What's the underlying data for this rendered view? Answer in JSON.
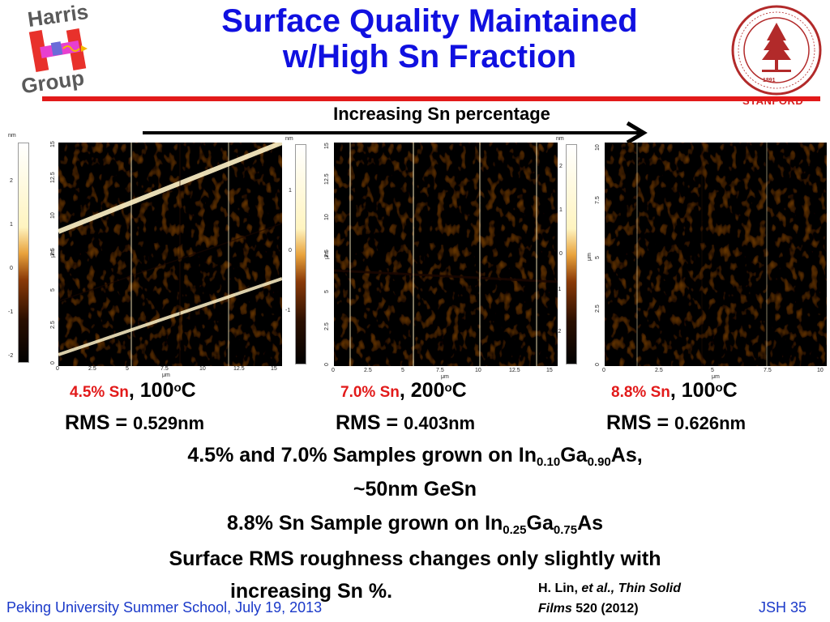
{
  "title": {
    "line1": "Surface Quality Maintained",
    "line2": "w/High Sn Fraction"
  },
  "logo": {
    "top": "Harris",
    "bottom": "Group"
  },
  "stanford": {
    "label": "STANFORD",
    "seal_ring_text": "LELAND STANFORD JUNIOR UNIVERSITY",
    "seal_year": "1891"
  },
  "arrow": {
    "label": "Increasing Sn percentage"
  },
  "panels": [
    {
      "colorbar_unit": "nm",
      "colorbar_ticks": [
        "2",
        "1",
        "0",
        "-1",
        "-2"
      ],
      "y_ticks": [
        "15",
        "12.5",
        "10",
        "7.5",
        "5",
        "2.5",
        "0"
      ],
      "x_ticks": [
        "0",
        "2.5",
        "5",
        "7.5",
        "10",
        "12.5",
        "15"
      ],
      "axis_unit": "μm",
      "sn": "4.5% Sn",
      "temp_prefix": ", 100",
      "temp_sup": "o",
      "temp_suffix": "C",
      "rms_label": "RMS = ",
      "rms_value": "0.529nm"
    },
    {
      "colorbar_unit": "nm",
      "colorbar_ticks": [
        "1",
        "0",
        "-1"
      ],
      "y_ticks": [
        "15",
        "12.5",
        "10",
        "7.5",
        "5",
        "2.5",
        "0"
      ],
      "x_ticks": [
        "0",
        "2.5",
        "5",
        "7.5",
        "10",
        "12.5",
        "15"
      ],
      "axis_unit": "μm",
      "sn": "7.0% Sn",
      "temp_prefix": ", 200",
      "temp_sup": "o",
      "temp_suffix": "C",
      "rms_label": "RMS = ",
      "rms_value": "0.403nm"
    },
    {
      "colorbar_unit": "nm",
      "colorbar_ticks": [
        "2",
        "1",
        "0",
        "-1",
        "-2"
      ],
      "y_ticks": [
        "10",
        "7.5",
        "5",
        "2.5",
        "0"
      ],
      "x_ticks": [
        "0",
        "2.5",
        "5",
        "7.5",
        "10"
      ],
      "axis_unit": "μm",
      "sn": "8.8% Sn",
      "temp_prefix": ", 100",
      "temp_sup": "o",
      "temp_suffix": "C",
      "rms_label": "RMS = ",
      "rms_value": "0.626nm"
    }
  ],
  "body": {
    "l1_a": "4.5% and 7.0% Samples grown on In",
    "l1_s1": "0.10",
    "l1_b": "Ga",
    "l1_s2": "0.90",
    "l1_c": "As,",
    "l2": "~50nm GeSn",
    "l3_a": "8.8% Sn Sample grown on In",
    "l3_s1": "0.25",
    "l3_b": "Ga",
    "l3_s2": "0.75",
    "l3_c": "As",
    "l4": "Surface RMS roughness changes only slightly with",
    "l5": "increasing Sn %."
  },
  "citation": {
    "author": "H. Lin, ",
    "etal": "et al., Thin Solid",
    "journal": "Films",
    "volume": " 520 (2012)"
  },
  "footer": {
    "left": "Peking University Summer School, July 19, 2013",
    "right": "JSH 35"
  },
  "colors": {
    "title": "#1010e0",
    "accent_red": "#e21a1a",
    "footer_blue": "#1a39c9",
    "afm_dark": "#2a0f00",
    "afm_mid": "#b5530f",
    "afm_light": "#fff6c8"
  }
}
